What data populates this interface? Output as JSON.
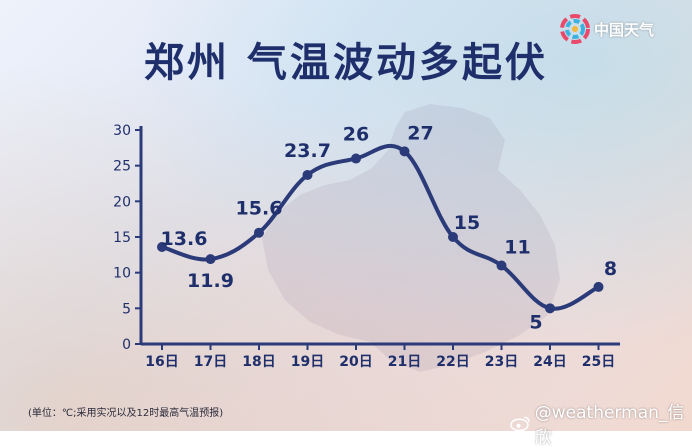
{
  "chart_data": {
    "type": "line",
    "title": "郑州 气温波动多起伏",
    "categories": [
      "16日",
      "17日",
      "18日",
      "19日",
      "20日",
      "21日",
      "22日",
      "23日",
      "24日",
      "25日"
    ],
    "series": [
      {
        "values": [
          13.6,
          11.9,
          15.6,
          23.7,
          26,
          27,
          15,
          11,
          5,
          8
        ]
      }
    ],
    "data_labels": [
      "13.6",
      "11.9",
      "15.6",
      "23.7",
      "26",
      "27",
      "15",
      "11",
      "5",
      "8"
    ],
    "y_ticks": [
      "0",
      "5",
      "10",
      "15",
      "20",
      "25",
      "30"
    ],
    "ylim": [
      0,
      30
    ],
    "grid": false,
    "line_color": "#2b3a78"
  },
  "logo": {
    "text": "中国天气",
    "icon": "pinwheel-logo-icon"
  },
  "footnote": "(单位：℃;采用实况以及12时最高气温预报)",
  "credit": {
    "icon": "weibo-icon",
    "text": "@weatherman_信欣"
  }
}
